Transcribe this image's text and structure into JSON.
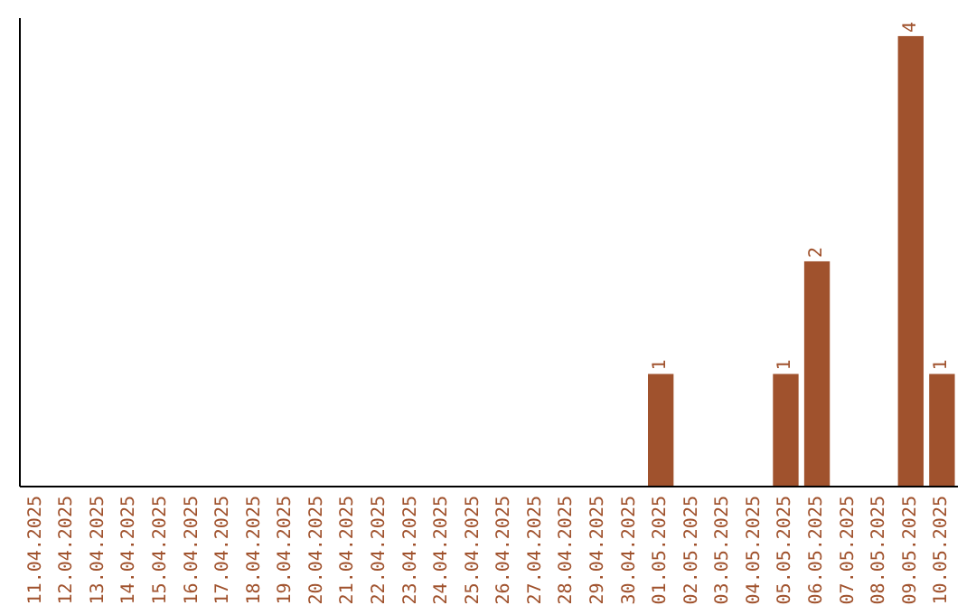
{
  "chart_data": {
    "type": "bar",
    "categories": [
      "11.04.2025",
      "12.04.2025",
      "13.04.2025",
      "14.04.2025",
      "15.04.2025",
      "16.04.2025",
      "17.04.2025",
      "18.04.2025",
      "19.04.2025",
      "20.04.2025",
      "21.04.2025",
      "22.04.2025",
      "23.04.2025",
      "24.04.2025",
      "25.04.2025",
      "26.04.2025",
      "27.04.2025",
      "28.04.2025",
      "29.04.2025",
      "30.04.2025",
      "01.05.2025",
      "02.05.2025",
      "03.05.2025",
      "04.05.2025",
      "05.05.2025",
      "06.05.2025",
      "07.05.2025",
      "08.05.2025",
      "09.05.2025",
      "10.05.2025"
    ],
    "values": [
      null,
      null,
      null,
      null,
      null,
      null,
      null,
      null,
      null,
      null,
      null,
      null,
      null,
      null,
      null,
      null,
      null,
      null,
      null,
      null,
      1,
      null,
      null,
      null,
      1,
      2,
      null,
      null,
      4,
      1
    ],
    "data_labels": true,
    "color": "#a0522d",
    "tick_labels": "x"
  }
}
